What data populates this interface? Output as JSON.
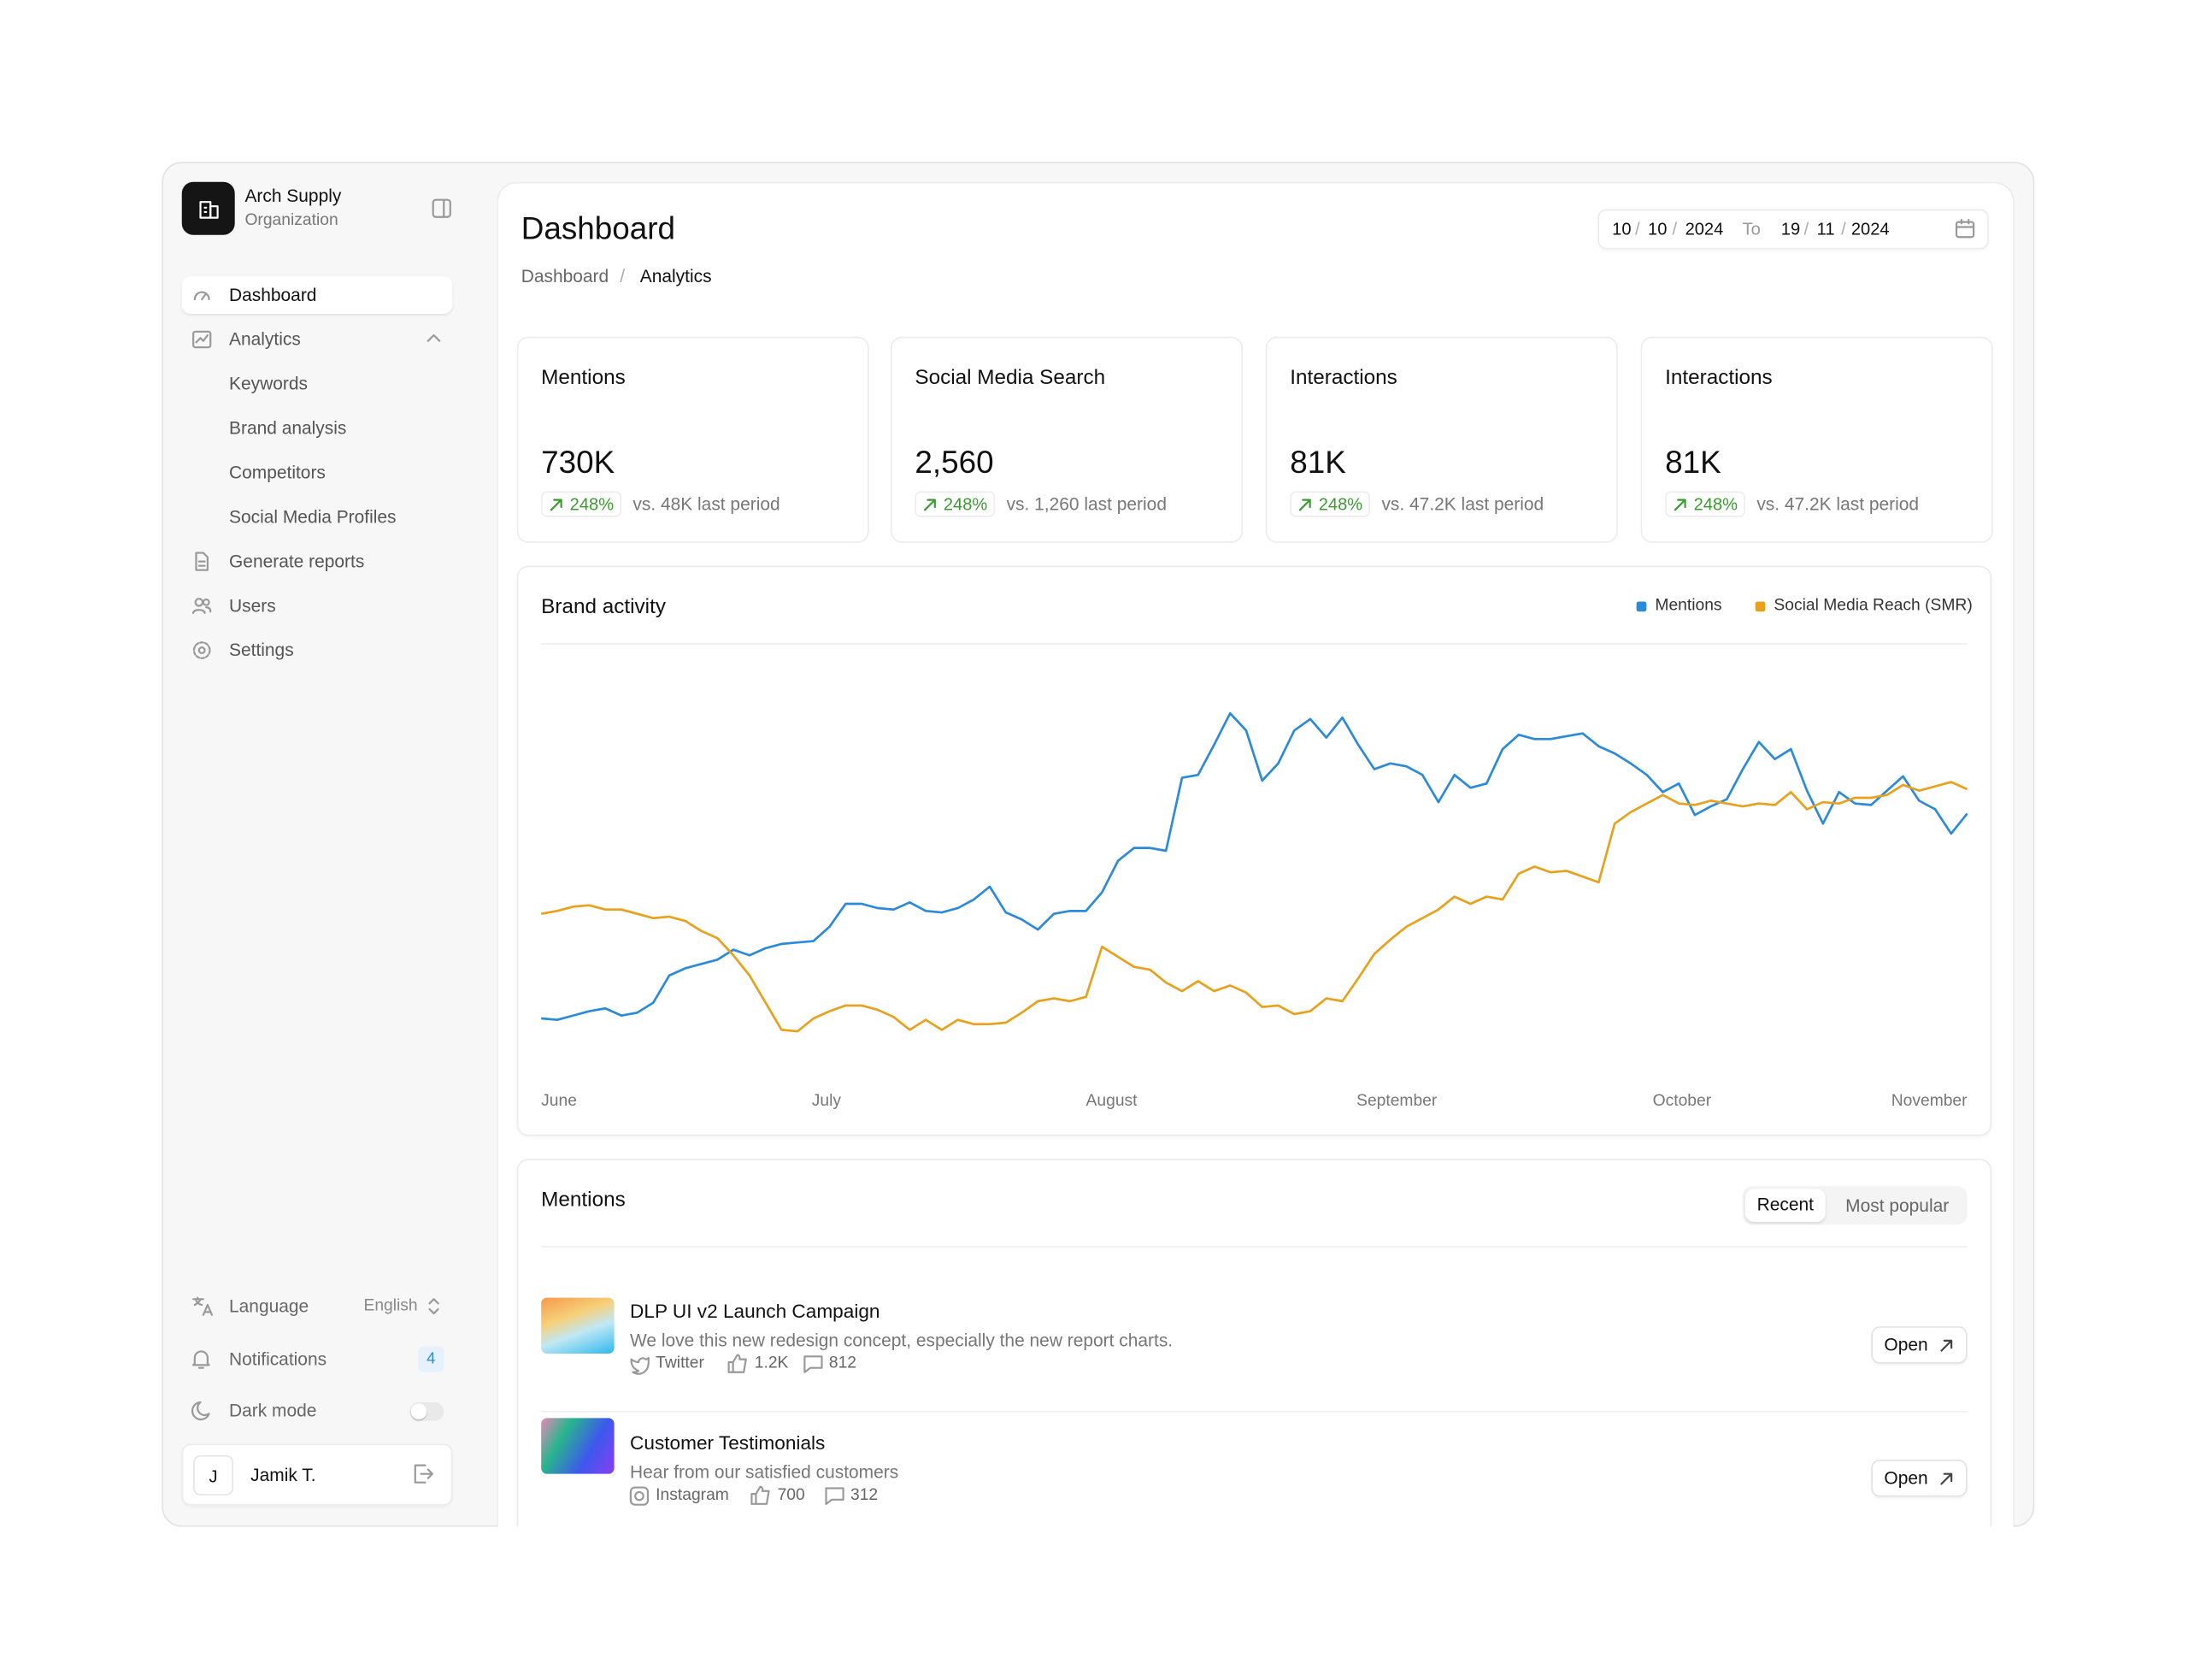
{
  "sidebar": {
    "org_name": "Arch Supply",
    "org_type": "Organization",
    "nav": [
      "Dashboard",
      "Analytics",
      "Keywords",
      "Brand analysis",
      "Competitors",
      "Social Media Profiles",
      "Generate reports",
      "Users",
      "Settings"
    ],
    "language_label": "Language",
    "language_value": "English",
    "notifications_label": "Notifications",
    "notifications_count": "4",
    "dark_mode_label": "Dark mode",
    "user_initial": "J",
    "user_name": "Jamik T."
  },
  "header": {
    "title": "Dashboard",
    "breadcrumb": [
      "Dashboard",
      "/",
      "Analytics"
    ],
    "date_from": [
      "10",
      "/",
      "10",
      "/",
      "2024"
    ],
    "date_to_label": "To",
    "date_to": [
      "19",
      "/",
      "11",
      "/",
      "2024"
    ]
  },
  "kpis": [
    {
      "title": "Mentions",
      "value": "730K",
      "change": "248%",
      "comparison": "vs. 48K last period"
    },
    {
      "title": "Social Media Search",
      "value": "2,560",
      "change": "248%",
      "comparison": "vs. 1,260 last period"
    },
    {
      "title": "Interactions",
      "value": "81K",
      "change": "248%",
      "comparison": "vs. 47.2K last period"
    },
    {
      "title": "Interactions",
      "value": "81K",
      "change": "248%",
      "comparison": "vs. 47.2K last period"
    }
  ],
  "chart_data": {
    "type": "line",
    "title": "Brand activity",
    "xticks": [
      "June",
      "July",
      "August",
      "September",
      "October",
      "November"
    ],
    "series": [
      {
        "name": "Mentions",
        "color": "#2b8ad9",
        "values": [
          49,
          48,
          51,
          54,
          56,
          51,
          53,
          60,
          79,
          84,
          87,
          90,
          97,
          93,
          98,
          101,
          102,
          103,
          113,
          129,
          129,
          126,
          125,
          130,
          124,
          123,
          126,
          132,
          141,
          123,
          118,
          111,
          122,
          124,
          124,
          137,
          159,
          168,
          168,
          166,
          217,
          219,
          240,
          262,
          250,
          215,
          227,
          250,
          258,
          245,
          259,
          240,
          223,
          227,
          225,
          219,
          200,
          219,
          210,
          213,
          237,
          247,
          244,
          244,
          246,
          248,
          239,
          234,
          227,
          219,
          207,
          213,
          191,
          197,
          202,
          223,
          242,
          230,
          237,
          208,
          185,
          207,
          199,
          198,
          208,
          218,
          201,
          195,
          178,
          192
        ]
      },
      {
        "name": "Social Media Reach (SMR)",
        "color": "#e7a11c",
        "values": [
          122,
          124,
          127,
          128,
          125,
          125,
          122,
          119,
          120,
          117,
          110,
          105,
          93,
          79,
          60,
          41,
          40,
          49,
          54,
          58,
          58,
          55,
          50,
          41,
          48,
          41,
          48,
          45,
          45,
          46,
          53,
          61,
          63,
          61,
          64,
          99,
          92,
          85,
          83,
          74,
          68,
          75,
          68,
          72,
          67,
          57,
          58,
          52,
          54,
          63,
          61,
          77,
          94,
          104,
          113,
          119,
          125,
          134,
          129,
          134,
          132,
          150,
          155,
          151,
          152,
          148,
          144,
          185,
          193,
          199,
          205,
          199,
          198,
          201,
          199,
          197,
          199,
          198,
          207,
          195,
          200,
          199,
          203,
          203,
          205,
          212,
          208,
          211,
          214,
          209
        ]
      }
    ]
  },
  "mentions": {
    "title": "Mentions",
    "tabs": [
      "Recent",
      "Most popular"
    ],
    "items": [
      {
        "title": "DLP UI v2 Launch Campaign",
        "description": "We love this new redesign concept, especially the new report charts.",
        "platform": "Twitter",
        "likes": "1.2K",
        "comments": "812",
        "action": "Open"
      },
      {
        "title": "Customer Testimonials",
        "description": "Hear from our satisfied customers",
        "platform": "Instagram",
        "likes": "700",
        "comments": "312",
        "action": "Open"
      }
    ]
  }
}
